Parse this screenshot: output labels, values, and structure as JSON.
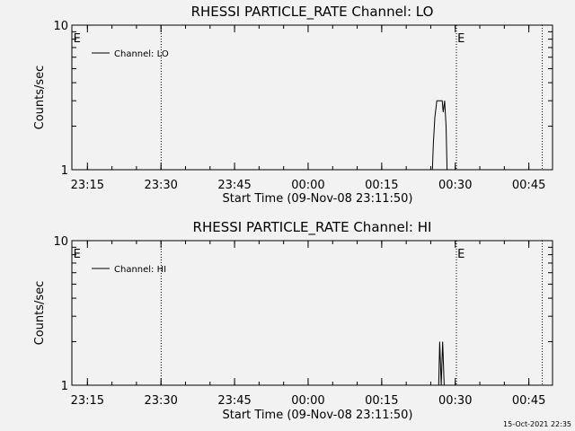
{
  "footer": {
    "timestamp": "15-Oct-2021 22:35"
  },
  "chart_data": [
    {
      "type": "line",
      "title": "RHESSI PARTICLE_RATE Channel: LO",
      "xlabel": "Start Time (09-Nov-08 23:11:50)",
      "ylabel": "Counts/sec",
      "yscale": "log",
      "ylim": [
        1,
        10
      ],
      "y_ticks": [
        "1",
        "10"
      ],
      "x_ticks": [
        "23:15",
        "23:30",
        "23:45",
        "00:00",
        "00:15",
        "00:30",
        "00:45"
      ],
      "x_tick_minutes": [
        3.17,
        18.17,
        33.17,
        48.17,
        63.17,
        78.17,
        93.17
      ],
      "xlim_minutes": [
        0,
        98
      ],
      "event_lines_minutes": [
        18.2,
        78.4,
        95.9
      ],
      "event_markers": [
        {
          "label": "E",
          "x_minutes": 0.3
        },
        {
          "label": "E",
          "x_minutes": 78.6
        }
      ],
      "legend": "top-left",
      "series": [
        {
          "name": "Channel: LO",
          "points": [
            [
              73.5,
              1
            ],
            [
              73.7,
              1.5
            ],
            [
              74.0,
              2.3
            ],
            [
              74.4,
              3
            ],
            [
              75.5,
              3
            ],
            [
              75.7,
              2.5
            ],
            [
              76.0,
              3
            ],
            [
              76.3,
              2
            ],
            [
              76.5,
              1
            ]
          ]
        }
      ]
    },
    {
      "type": "line",
      "title": "RHESSI PARTICLE_RATE Channel: HI",
      "xlabel": "Start Time (09-Nov-08 23:11:50)",
      "ylabel": "Counts/sec",
      "yscale": "log",
      "ylim": [
        1,
        10
      ],
      "y_ticks": [
        "1",
        "10"
      ],
      "x_ticks": [
        "23:15",
        "23:30",
        "23:45",
        "00:00",
        "00:15",
        "00:30",
        "00:45"
      ],
      "x_tick_minutes": [
        3.17,
        18.17,
        33.17,
        48.17,
        63.17,
        78.17,
        93.17
      ],
      "xlim_minutes": [
        0,
        98
      ],
      "event_lines_minutes": [
        18.2,
        78.4,
        95.9
      ],
      "event_markers": [
        {
          "label": "E",
          "x_minutes": 0.3
        },
        {
          "label": "E",
          "x_minutes": 78.6
        }
      ],
      "legend": "top-left",
      "series": [
        {
          "name": "Channel: HI",
          "points": [
            [
              74.8,
              1
            ],
            [
              75.0,
              2
            ],
            [
              75.3,
              1
            ],
            [
              75.6,
              2
            ],
            [
              75.9,
              1
            ]
          ]
        }
      ]
    }
  ]
}
